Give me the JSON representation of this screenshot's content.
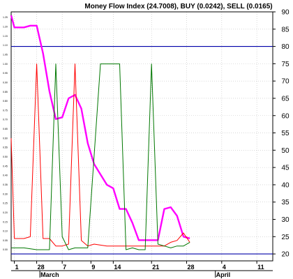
{
  "chart_data": {
    "type": "line",
    "title": "Money Flow Index (24.7008), BUY (0.0242), SELL (0.0165)",
    "xlabel": "",
    "ylabel": "",
    "grid": true,
    "right_axis": {
      "ylim": [
        18,
        90
      ],
      "ticks": [
        20,
        25,
        30,
        35,
        40,
        45,
        50,
        55,
        60,
        65,
        70,
        75,
        80,
        85,
        90
      ]
    },
    "left_axis": {
      "ylim": [
        -0.06,
        1.28
      ],
      "ticks": [
        "0.00",
        "0.05",
        "0.10",
        "0.15",
        "0.20",
        "0.25",
        "0.30",
        "0.35",
        "0.40",
        "0.45",
        "0.50",
        "0.55",
        "0.60",
        "0.65",
        "0.70",
        "0.75",
        "0.80",
        "0.85",
        "0.90",
        "0.95",
        "1.00",
        "1.05",
        "1.10",
        "1.15",
        "1.20",
        "1.25"
      ]
    },
    "x_ticks": [
      {
        "label": "1",
        "x": 1
      },
      {
        "label": "28",
        "x": 8
      },
      {
        "label": "7",
        "x": 16
      },
      {
        "label": "9",
        "x": 25
      },
      {
        "label": "14",
        "x": 32
      },
      {
        "label": "21",
        "x": 44
      },
      {
        "label": "28",
        "x": 55
      },
      {
        "label": "4",
        "x": 66
      },
      {
        "label": "11",
        "x": 77
      }
    ],
    "x_months": [
      {
        "label": "March",
        "x": 9
      },
      {
        "label": "April",
        "x": 64
      }
    ],
    "x_range": [
      0,
      82
    ],
    "reference_lines": [
      80,
      20
    ],
    "series": [
      {
        "color": "#ff00ff",
        "axis": "right",
        "x": [
          0,
          1,
          3,
          4,
          6,
          8,
          10,
          12,
          14,
          16,
          18,
          20,
          22,
          24,
          26,
          28,
          30,
          32,
          34,
          36,
          38,
          40,
          42,
          44,
          46,
          48,
          50,
          52,
          54,
          56
        ],
        "values": [
          89,
          85.5,
          85.5,
          85.5,
          86,
          86,
          78,
          67,
          59,
          59.5,
          65,
          66,
          62,
          52,
          46,
          43,
          40,
          39,
          33,
          33,
          29,
          24,
          24,
          24,
          24,
          33,
          33.5,
          31,
          25,
          24.5
        ]
      },
      {
        "color": "#ff0000",
        "axis": "left",
        "x": [
          0,
          1,
          4,
          6,
          8,
          10,
          12,
          14,
          16,
          18,
          20,
          22,
          24,
          26,
          30,
          34,
          38,
          42,
          46,
          48,
          50,
          52,
          54,
          56
        ],
        "values": [
          0.6,
          0.06,
          0.06,
          0.07,
          1.0,
          0.06,
          0.06,
          0.02,
          0.02,
          0.03,
          1.0,
          0.05,
          0.02,
          0.03,
          0.02,
          0.02,
          0.02,
          0.02,
          0.02,
          0.02,
          0.04,
          0.05,
          0.09,
          0.04
        ]
      },
      {
        "color": "#007700",
        "axis": "left",
        "x": [
          0,
          4,
          8,
          12,
          14,
          16,
          18,
          20,
          22,
          24,
          28,
          30,
          32,
          34,
          36,
          38,
          40,
          42,
          44,
          46,
          48,
          50,
          52,
          54,
          56
        ],
        "values": [
          0.01,
          0.01,
          0.0,
          0.0,
          1.0,
          0.07,
          0.0,
          0.01,
          0.01,
          0.01,
          1.0,
          1.0,
          1.0,
          1.0,
          0.0,
          0.01,
          0.0,
          0.0,
          1.0,
          0.03,
          0.02,
          0.01,
          0.02,
          0.02,
          0.04
        ]
      }
    ]
  }
}
